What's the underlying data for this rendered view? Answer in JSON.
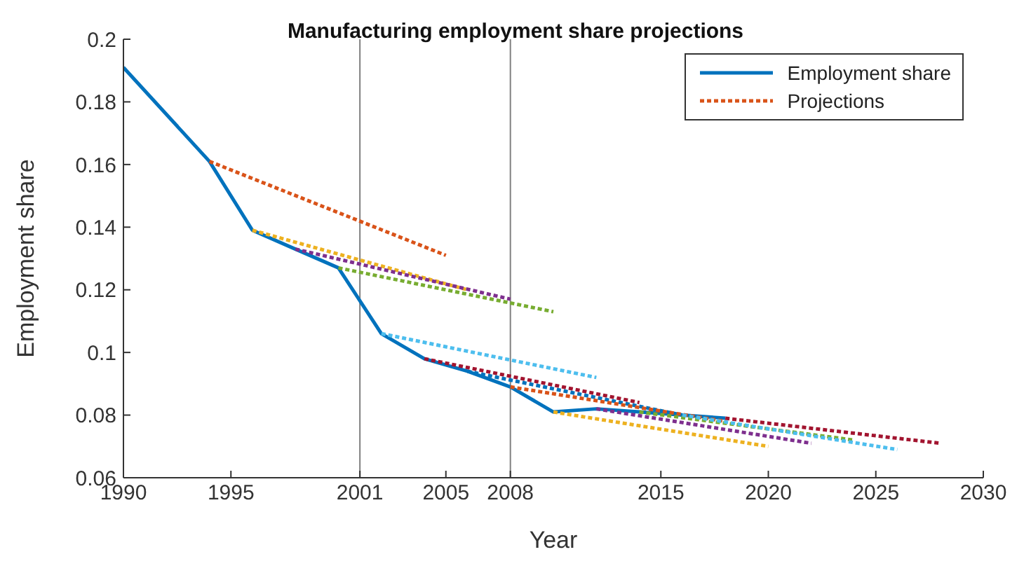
{
  "chart_data": {
    "type": "line",
    "title": "Manufacturing employment share projections",
    "xlabel": "Year",
    "ylabel": "Employment share",
    "xlim": [
      1990,
      2030
    ],
    "xticks": [
      1990,
      1995,
      2001,
      2005,
      2008,
      2015,
      2020,
      2025,
      2030
    ],
    "ylim": [
      0.06,
      0.2
    ],
    "yticks": [
      0.06,
      0.08,
      0.1,
      0.12,
      0.14,
      0.16,
      0.18,
      0.2
    ],
    "grid": false,
    "legend": "top right",
    "marker": "none",
    "ref_lines": [
      {
        "axis": "x",
        "value": 2001,
        "color": "#808080"
      },
      {
        "axis": "x",
        "value": 2008,
        "color": "#808080"
      }
    ],
    "series": [
      {
        "name": "Employment share",
        "color": "#0072bd",
        "line_style": "solid",
        "x": [
          1990,
          1994,
          1996,
          1998,
          2000,
          2002,
          2004,
          2006,
          2008,
          2010,
          2012,
          2014,
          2016,
          2018
        ],
        "values": [
          0.191,
          0.161,
          0.139,
          0.133,
          0.127,
          0.106,
          0.098,
          0.094,
          0.089,
          0.081,
          0.082,
          0.081,
          0.08,
          0.079
        ]
      },
      {
        "name": "Projections",
        "color": "#d95319",
        "line_style": "dotted",
        "x": [
          1994,
          2005
        ],
        "values": [
          0.161,
          0.131
        ]
      },
      {
        "color": "#edb120",
        "line_style": "dotted",
        "x": [
          1996,
          2006
        ],
        "values": [
          0.139,
          0.12
        ]
      },
      {
        "color": "#7e2f8e",
        "line_style": "dotted",
        "x": [
          1998,
          2008
        ],
        "values": [
          0.133,
          0.117
        ]
      },
      {
        "color": "#77ac30",
        "line_style": "dotted",
        "x": [
          2000,
          2010
        ],
        "values": [
          0.127,
          0.113
        ]
      },
      {
        "color": "#4dbeee",
        "line_style": "dotted",
        "x": [
          2002,
          2012
        ],
        "values": [
          0.106,
          0.092
        ]
      },
      {
        "color": "#a2142f",
        "line_style": "dotted",
        "x": [
          2004,
          2014
        ],
        "values": [
          0.098,
          0.084
        ]
      },
      {
        "color": "#0072bd",
        "line_style": "dotted",
        "x": [
          2006,
          2016
        ],
        "values": [
          0.094,
          0.08
        ]
      },
      {
        "color": "#d95319",
        "line_style": "dotted",
        "x": [
          2008,
          2018
        ],
        "values": [
          0.089,
          0.078
        ]
      },
      {
        "color": "#edb120",
        "line_style": "dotted",
        "x": [
          2010,
          2020
        ],
        "values": [
          0.081,
          0.07
        ]
      },
      {
        "color": "#7e2f8e",
        "line_style": "dotted",
        "x": [
          2012,
          2022
        ],
        "values": [
          0.082,
          0.071
        ]
      },
      {
        "color": "#77ac30",
        "line_style": "dotted",
        "x": [
          2014,
          2024
        ],
        "values": [
          0.081,
          0.072
        ]
      },
      {
        "color": "#4dbeee",
        "line_style": "dotted",
        "x": [
          2016,
          2026
        ],
        "values": [
          0.08,
          0.069
        ]
      },
      {
        "color": "#a2142f",
        "line_style": "dotted",
        "x": [
          2018,
          2028
        ],
        "values": [
          0.079,
          0.071
        ]
      }
    ]
  }
}
